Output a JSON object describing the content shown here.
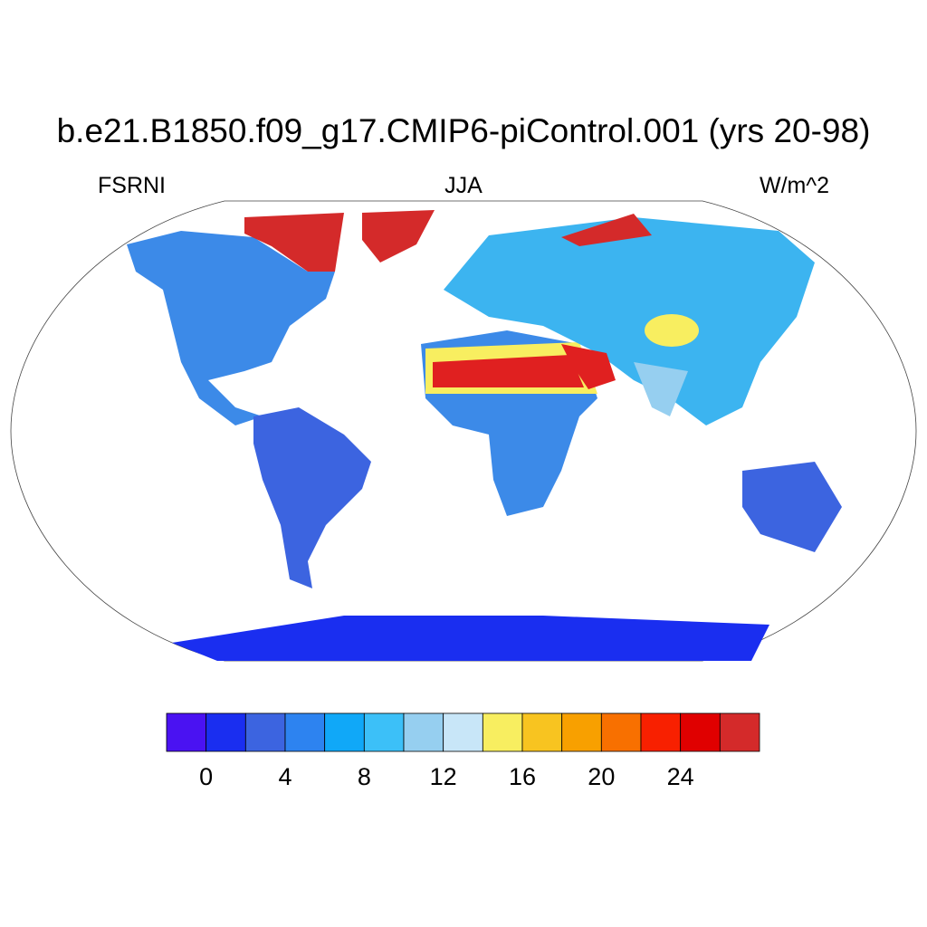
{
  "title": "b.e21.B1850.f09_g17.CMIP6-piControl.001 (yrs 20-98)",
  "left_label": "FSRNI",
  "center_label": "JJA",
  "right_label": "W/m^2",
  "colorbar": {
    "levels": [
      0,
      2,
      4,
      6,
      8,
      10,
      12,
      14,
      16,
      18,
      20,
      22,
      24,
      26
    ],
    "colors": [
      "#4a12f2",
      "#1a2ef0",
      "#3c64e0",
      "#2d83f0",
      "#10a8f8",
      "#3cc0f8",
      "#96cff0",
      "#c8e6f8",
      "#f8ee60",
      "#f8c420",
      "#f8a000",
      "#f87000",
      "#f82000",
      "#e00000",
      "#d42a2a"
    ],
    "ticks": [
      0,
      4,
      8,
      12,
      16,
      20,
      24
    ]
  }
}
